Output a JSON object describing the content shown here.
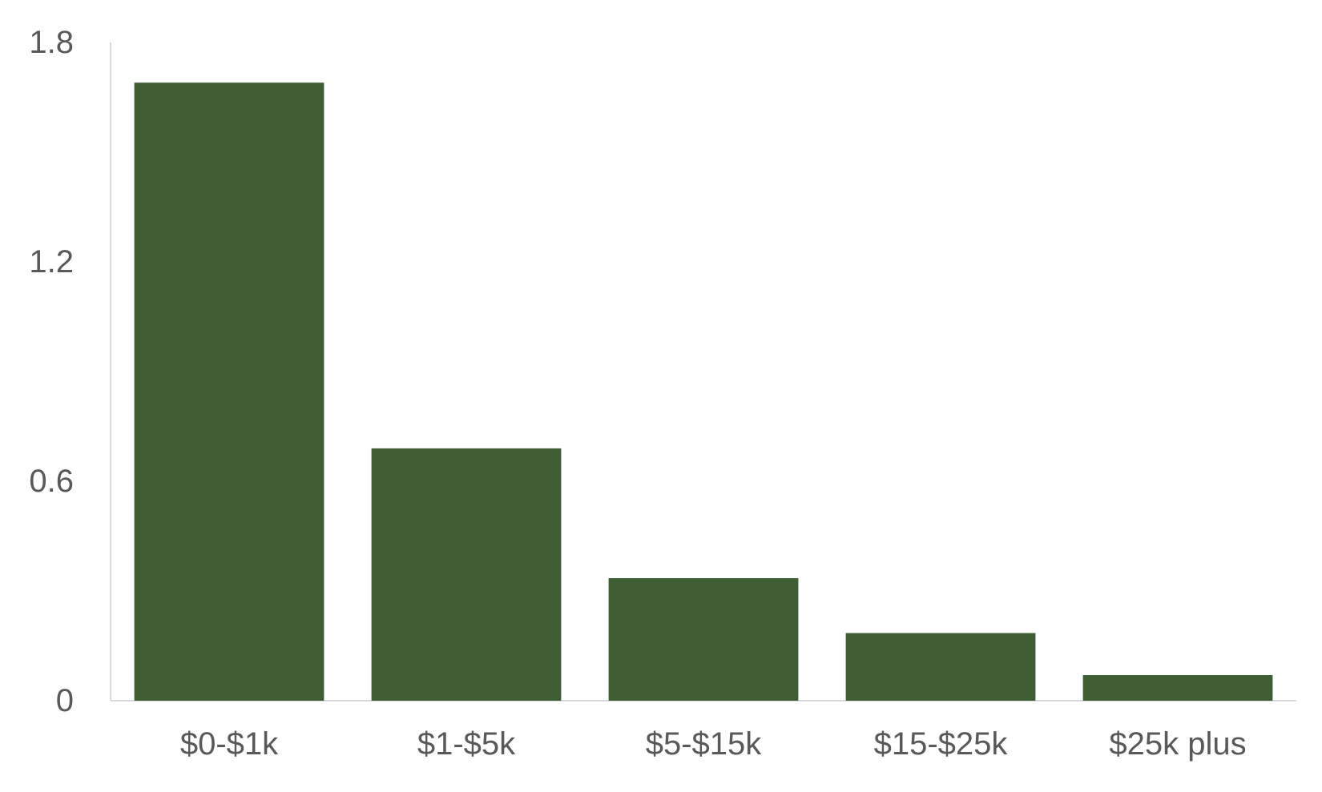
{
  "chart_data": {
    "type": "bar",
    "title": "",
    "xlabel": "",
    "ylabel": "",
    "categories": [
      "$0-$1k",
      "$1-$5k",
      "$5-$15k",
      "$15-$25k",
      "$25k plus"
    ],
    "values": [
      1.69,
      0.69,
      0.335,
      0.185,
      0.07
    ],
    "ylim": [
      0,
      1.8
    ],
    "yticks": [
      "0",
      "0.6",
      "1.2",
      "1.8"
    ],
    "grid": false,
    "legend": "none",
    "colors": {
      "bar": "#3f5e33",
      "axis": "#d9d9d9",
      "text": "#595959"
    }
  }
}
